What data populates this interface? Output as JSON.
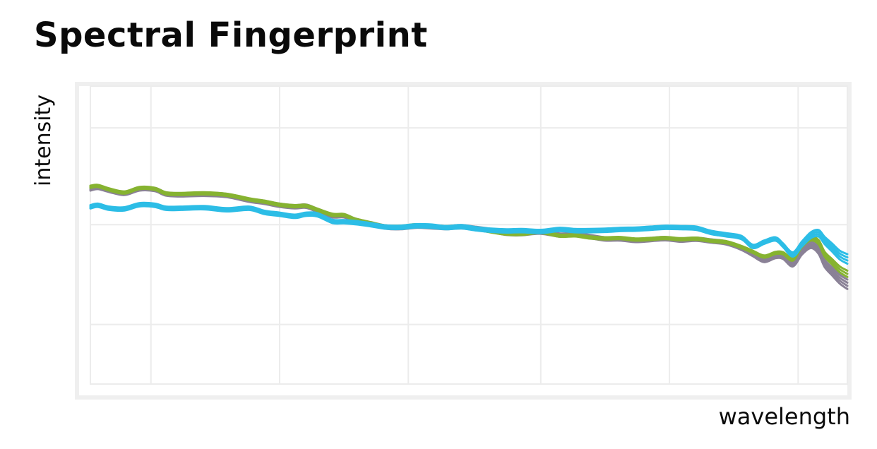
{
  "colors": {
    "series_blue": "#2cbde6",
    "series_gray": "#8a8196",
    "series_green": "#86b330",
    "panel_border": "#efefef",
    "gridline": "#ececec",
    "text": "#0a0a0a"
  },
  "chart_data": {
    "type": "line",
    "title": "Spectral Fingerprint",
    "xlabel": "wavelength",
    "ylabel": "intensity",
    "x_ticks_shown": false,
    "y_ticks_shown": false,
    "grid": true,
    "legend": "none",
    "xlim": [
      0,
      100
    ],
    "ylim": [
      0,
      100
    ],
    "x_gridlines": [
      8,
      25,
      42,
      59.5,
      76.5,
      93.5
    ],
    "y_gridlines": [
      86,
      53.5,
      20
    ],
    "series": [
      {
        "color": "#8a8196",
        "replicates": 4,
        "x": [
          0,
          1,
          2.5,
          4.5,
          6.5,
          8.5,
          10,
          12,
          15,
          18,
          21,
          23,
          25,
          27,
          28.5,
          30,
          32,
          33.5,
          35,
          37,
          39,
          41,
          43,
          45,
          47,
          49,
          51,
          53,
          55,
          57,
          59.5,
          62,
          64,
          66,
          68,
          70,
          72,
          74,
          76,
          78,
          80,
          82,
          84,
          86,
          87.5,
          89,
          90.5,
          91.5,
          92.8,
          94,
          95.2,
          96.2,
          97,
          98,
          99,
          100
        ],
        "y": [
          65.5,
          66,
          65,
          64,
          65.5,
          65.3,
          63.8,
          63.5,
          63.7,
          63.3,
          61.7,
          61,
          60,
          59.5,
          59.7,
          58.3,
          56.5,
          56.5,
          55,
          53.8,
          52.7,
          52.5,
          53,
          52.8,
          52.5,
          52.8,
          52.2,
          51.5,
          50.6,
          50.5,
          51,
          50,
          50.2,
          49.5,
          48.7,
          48.7,
          48.2,
          48.5,
          48.8,
          48.3,
          48.6,
          48,
          47.4,
          45.6,
          43.5,
          41.5,
          42.8,
          42.6,
          40.2,
          44.3,
          46.6,
          44.8,
          40.5,
          37.8,
          35.2,
          33.5
        ]
      },
      {
        "color": "#86b330",
        "replicates": 3,
        "x": [
          0,
          1,
          2.5,
          4.5,
          6.5,
          8.5,
          10,
          12,
          15,
          18,
          21,
          23,
          25,
          27,
          28.5,
          30,
          32,
          33.5,
          35,
          37,
          39,
          41,
          43,
          45,
          47,
          49,
          51,
          53,
          55,
          57,
          59.5,
          62,
          64,
          66,
          68,
          70,
          72,
          74,
          76,
          78,
          80,
          82,
          84,
          86,
          87.5,
          89,
          90.5,
          91.5,
          92.8,
          94,
          95.2,
          96.2,
          97,
          98,
          99,
          100
        ],
        "y": [
          66.2,
          66.5,
          65.3,
          64.3,
          65.8,
          65.5,
          64,
          63.8,
          64,
          63.5,
          62,
          61.2,
          60.2,
          59.7,
          59.8,
          58.5,
          56.8,
          56.7,
          55.2,
          54,
          52.9,
          52.8,
          53.3,
          53,
          52.7,
          52.9,
          52.2,
          51.2,
          50.5,
          50.4,
          51,
          49.8,
          49.9,
          49.2,
          48.9,
          49,
          48.5,
          48.7,
          49,
          48.6,
          48.8,
          48.1,
          47.6,
          46,
          44.4,
          42.8,
          44,
          43.9,
          41.9,
          46.5,
          48.8,
          47.6,
          43.6,
          41,
          38.5,
          37
        ]
      },
      {
        "color": "#2cbde6",
        "replicates": 4,
        "x": [
          0,
          1,
          2.5,
          4.5,
          6.5,
          8.5,
          10,
          12,
          15,
          18,
          21,
          23,
          25,
          27,
          28.5,
          30,
          32,
          33.5,
          35,
          37,
          39,
          41,
          43,
          45,
          47,
          49,
          51,
          53,
          55,
          57,
          59.5,
          62,
          64,
          66,
          68,
          70,
          72,
          74,
          76,
          78,
          80,
          82,
          84,
          86,
          87.5,
          89,
          90.5,
          91.5,
          92.8,
          94,
          95.2,
          96.2,
          97,
          98,
          99,
          100
        ],
        "y": [
          59.5,
          60,
          59,
          58.8,
          60.2,
          60,
          59,
          59,
          59.2,
          58.5,
          59,
          57.6,
          57,
          56.3,
          57,
          56.8,
          54.6,
          54.5,
          54.2,
          53.5,
          52.7,
          52.6,
          53.1,
          53,
          52.5,
          52.8,
          52.1,
          51.6,
          51.4,
          51.5,
          51.2,
          51.9,
          51.5,
          51.5,
          51.6,
          51.9,
          52,
          52.3,
          52.6,
          52.5,
          52.3,
          50.9,
          50.1,
          49.2,
          46.2,
          47.6,
          48.7,
          46.6,
          43.5,
          47,
          50,
          50.6,
          48.2,
          45.8,
          43.3,
          42
        ]
      }
    ]
  }
}
